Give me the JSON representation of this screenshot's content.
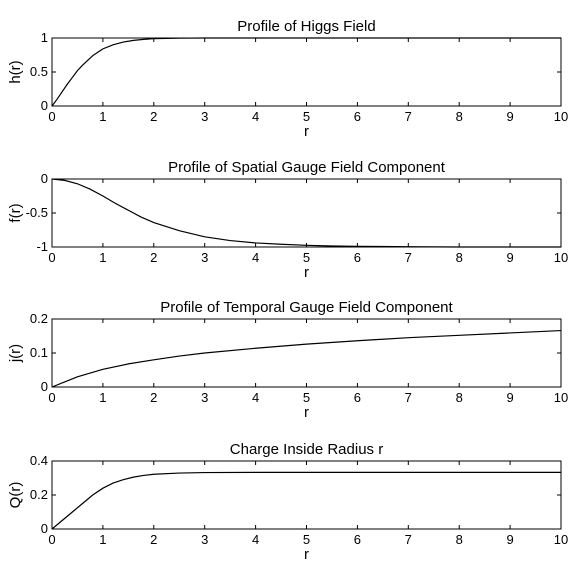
{
  "chart_data": [
    {
      "type": "line",
      "title": "Profile of Higgs Field",
      "xlabel": "r",
      "ylabel": "h(r)",
      "xlim": [
        0,
        10
      ],
      "ylim": [
        0,
        1
      ],
      "xticks": [
        0,
        1,
        2,
        3,
        4,
        5,
        6,
        7,
        8,
        9,
        10
      ],
      "xtick_labels": [
        "0",
        "1",
        "2",
        "3",
        "4",
        "5",
        "6",
        "7",
        "8",
        "9",
        "10"
      ],
      "yticks": [
        0,
        0.5,
        1
      ],
      "ytick_labels": [
        "0",
        "0.5",
        "1"
      ],
      "grid": false,
      "series": [
        {
          "x": [
            0,
            0.1,
            0.2,
            0.3,
            0.4,
            0.5,
            0.6,
            0.7,
            0.8,
            0.9,
            1.0,
            1.2,
            1.4,
            1.6,
            1.8,
            2.0,
            2.5,
            3.0,
            4.0,
            5.0,
            6.0,
            7.0,
            8.0,
            9.0,
            10.0
          ],
          "y": [
            0,
            0.1,
            0.21,
            0.32,
            0.42,
            0.52,
            0.6,
            0.67,
            0.74,
            0.79,
            0.84,
            0.9,
            0.94,
            0.965,
            0.98,
            0.99,
            0.997,
            1.0,
            1.0,
            1.0,
            1.0,
            1.0,
            1.0,
            1.0,
            1.0
          ]
        }
      ]
    },
    {
      "type": "line",
      "title": "Profile of Spatial Gauge Field Component",
      "xlabel": "r",
      "ylabel": "f(r)",
      "xlim": [
        0,
        10
      ],
      "ylim": [
        -1,
        0
      ],
      "xticks": [
        0,
        1,
        2,
        3,
        4,
        5,
        6,
        7,
        8,
        9,
        10
      ],
      "xtick_labels": [
        "0",
        "1",
        "2",
        "3",
        "4",
        "5",
        "6",
        "7",
        "8",
        "9",
        "10"
      ],
      "yticks": [
        -1,
        -0.5,
        0
      ],
      "ytick_labels": [
        "-1",
        "-0.5",
        "0"
      ],
      "grid": false,
      "series": [
        {
          "x": [
            0,
            0.25,
            0.5,
            0.75,
            1.0,
            1.25,
            1.5,
            1.75,
            2.0,
            2.5,
            3.0,
            3.5,
            4.0,
            4.5,
            5.0,
            5.5,
            6.0,
            7.0,
            8.0,
            9.0,
            10.0
          ],
          "y": [
            0,
            -0.02,
            -0.07,
            -0.15,
            -0.25,
            -0.36,
            -0.46,
            -0.56,
            -0.64,
            -0.76,
            -0.85,
            -0.905,
            -0.94,
            -0.96,
            -0.975,
            -0.985,
            -0.99,
            -0.996,
            -1.0,
            -1.0,
            -1.0
          ]
        }
      ]
    },
    {
      "type": "line",
      "title": "Profile of Temporal Gauge Field Component",
      "xlabel": "r",
      "ylabel": "j(r)",
      "xlim": [
        0,
        10
      ],
      "ylim": [
        0,
        0.2
      ],
      "xticks": [
        0,
        1,
        2,
        3,
        4,
        5,
        6,
        7,
        8,
        9,
        10
      ],
      "xtick_labels": [
        "0",
        "1",
        "2",
        "3",
        "4",
        "5",
        "6",
        "7",
        "8",
        "9",
        "10"
      ],
      "yticks": [
        0,
        0.1,
        0.2
      ],
      "ytick_labels": [
        "0",
        "0.1",
        "0.2"
      ],
      "grid": false,
      "series": [
        {
          "x": [
            0,
            0.5,
            1.0,
            1.5,
            2.0,
            2.5,
            3.0,
            4.0,
            5.0,
            6.0,
            7.0,
            8.0,
            9.0,
            10.0
          ],
          "y": [
            0,
            0.03,
            0.052,
            0.068,
            0.08,
            0.091,
            0.1,
            0.114,
            0.126,
            0.136,
            0.145,
            0.152,
            0.159,
            0.166
          ]
        }
      ]
    },
    {
      "type": "line",
      "title": "Charge Inside Radius r",
      "xlabel": "r",
      "ylabel": "Q(r)",
      "xlim": [
        0,
        10
      ],
      "ylim": [
        0,
        0.4
      ],
      "xticks": [
        0,
        1,
        2,
        3,
        4,
        5,
        6,
        7,
        8,
        9,
        10
      ],
      "xtick_labels": [
        "0",
        "1",
        "2",
        "3",
        "4",
        "5",
        "6",
        "7",
        "8",
        "9",
        "10"
      ],
      "yticks": [
        0,
        0.2,
        0.4
      ],
      "ytick_labels": [
        "0",
        "0.2",
        "0.4"
      ],
      "grid": false,
      "series": [
        {
          "x": [
            0,
            0.2,
            0.4,
            0.6,
            0.8,
            1.0,
            1.2,
            1.4,
            1.6,
            1.8,
            2.0,
            2.5,
            3.0,
            4.0,
            5.0,
            6.0,
            7.0,
            8.0,
            9.0,
            10.0
          ],
          "y": [
            0,
            0.05,
            0.1,
            0.15,
            0.2,
            0.24,
            0.27,
            0.29,
            0.305,
            0.315,
            0.322,
            0.329,
            0.332,
            0.333,
            0.333,
            0.333,
            0.333,
            0.333,
            0.333,
            0.333
          ]
        }
      ]
    }
  ]
}
